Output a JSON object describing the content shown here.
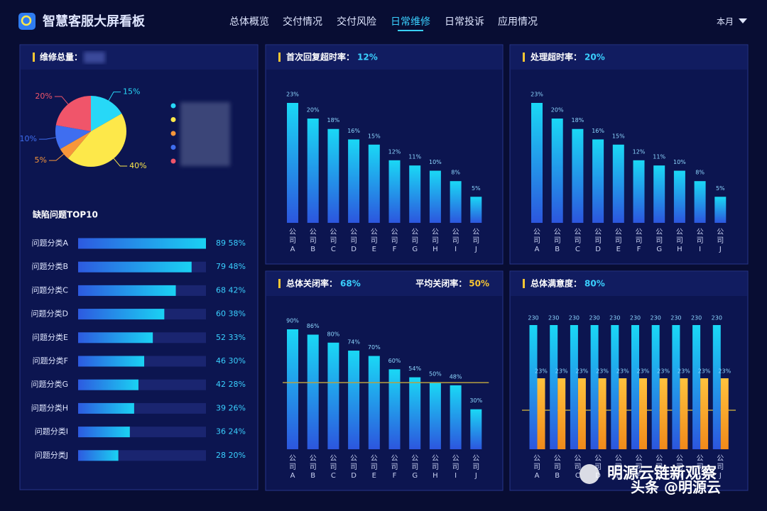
{
  "header": {
    "title": "智慧客服大屏看板",
    "nav": [
      "总体概览",
      "交付情况",
      "交付风险",
      "日常维修",
      "日常投诉",
      "应用情况"
    ],
    "nav_active": 3,
    "period": "本月"
  },
  "chart_data": [
    {
      "type": "pie",
      "title": "维修总量：",
      "values": [
        15,
        40,
        5,
        10,
        20
      ],
      "value_labels": [
        "15%",
        "40%",
        "5%",
        "10%",
        "20%"
      ],
      "colors": [
        "#27d8f7",
        "#fde84a",
        "#f7963a",
        "#3f6ef0",
        "#f0556a"
      ]
    },
    {
      "type": "hbar",
      "title": "缺陷问题TOP10",
      "categories": [
        "问题分类A",
        "问题分类B",
        "问题分类C",
        "问题分类D",
        "问题分类E",
        "问题分类F",
        "问题分类G",
        "问题分类H",
        "问题分类I",
        "问题分类J"
      ],
      "values": [
        89,
        79,
        68,
        60,
        52,
        46,
        42,
        39,
        36,
        28
      ],
      "value_labels": [
        "89 58%",
        "79 48%",
        "68 42%",
        "60 38%",
        "52 33%",
        "46 30%",
        "42 28%",
        "39 26%",
        "36 24%",
        "28 20%"
      ],
      "color": "#1fc6ee"
    },
    {
      "type": "bar",
      "title": "首次回复超时率：",
      "subtitle": "12%",
      "categories": [
        "公司A",
        "公司B",
        "公司C",
        "公司D",
        "公司E",
        "公司F",
        "公司G",
        "公司H",
        "公司I",
        "公司J"
      ],
      "values": [
        23,
        20,
        18,
        16,
        15,
        12,
        11,
        10,
        8,
        5
      ],
      "value_labels": [
        "23%",
        "20%",
        "18%",
        "16%",
        "15%",
        "12%",
        "11%",
        "10%",
        "8%",
        "5%"
      ],
      "color": "#1ad8f5"
    },
    {
      "type": "bar",
      "title": "处理超时率：",
      "subtitle": "20%",
      "categories": [
        "公司A",
        "公司B",
        "公司C",
        "公司D",
        "公司E",
        "公司F",
        "公司G",
        "公司H",
        "公司I",
        "公司J"
      ],
      "values": [
        23,
        20,
        18,
        16,
        15,
        12,
        11,
        10,
        8,
        5
      ],
      "value_labels": [
        "23%",
        "20%",
        "18%",
        "16%",
        "15%",
        "12%",
        "11%",
        "10%",
        "8%",
        "5%"
      ],
      "color": "#1ad8f5"
    },
    {
      "type": "bar",
      "title": "总体关闭率：",
      "subtitle": "68%",
      "average": {
        "label": "平均关闭率：",
        "value": 50,
        "value_label": "50%"
      },
      "categories": [
        "公司A",
        "公司B",
        "公司C",
        "公司D",
        "公司E",
        "公司F",
        "公司G",
        "公司H",
        "公司I",
        "公司J"
      ],
      "values": [
        90,
        86,
        80,
        74,
        70,
        60,
        54,
        50,
        48,
        30
      ],
      "value_labels": [
        "90%",
        "86%",
        "80%",
        "74%",
        "70%",
        "60%",
        "54%",
        "50%",
        "48%",
        "30%"
      ],
      "color": "#1ad8f5"
    },
    {
      "type": "grouped",
      "title": "总体满意度：",
      "subtitle": "80%",
      "categories": [
        "公司A",
        "公司B",
        "公司C",
        "公司D",
        "公司E",
        "公司F",
        "公司G",
        "公司H",
        "公司I",
        "公司J"
      ],
      "series": [
        {
          "color": "#1ad8f5",
          "values": [
            230,
            230,
            230,
            230,
            230,
            230,
            230,
            230,
            230,
            230
          ]
        },
        {
          "color": "#f9b233",
          "axis": "y2",
          "values": [
            23,
            23,
            23,
            23,
            23,
            23,
            23,
            23,
            23,
            23
          ],
          "value_labels": [
            "23%",
            "23%",
            "23%",
            "23%",
            "23%",
            "23%",
            "23%",
            "23%",
            "23%",
            "23%"
          ]
        }
      ]
    }
  ],
  "watermark": [
    "明源云链新观察",
    "头条 @明源云"
  ]
}
